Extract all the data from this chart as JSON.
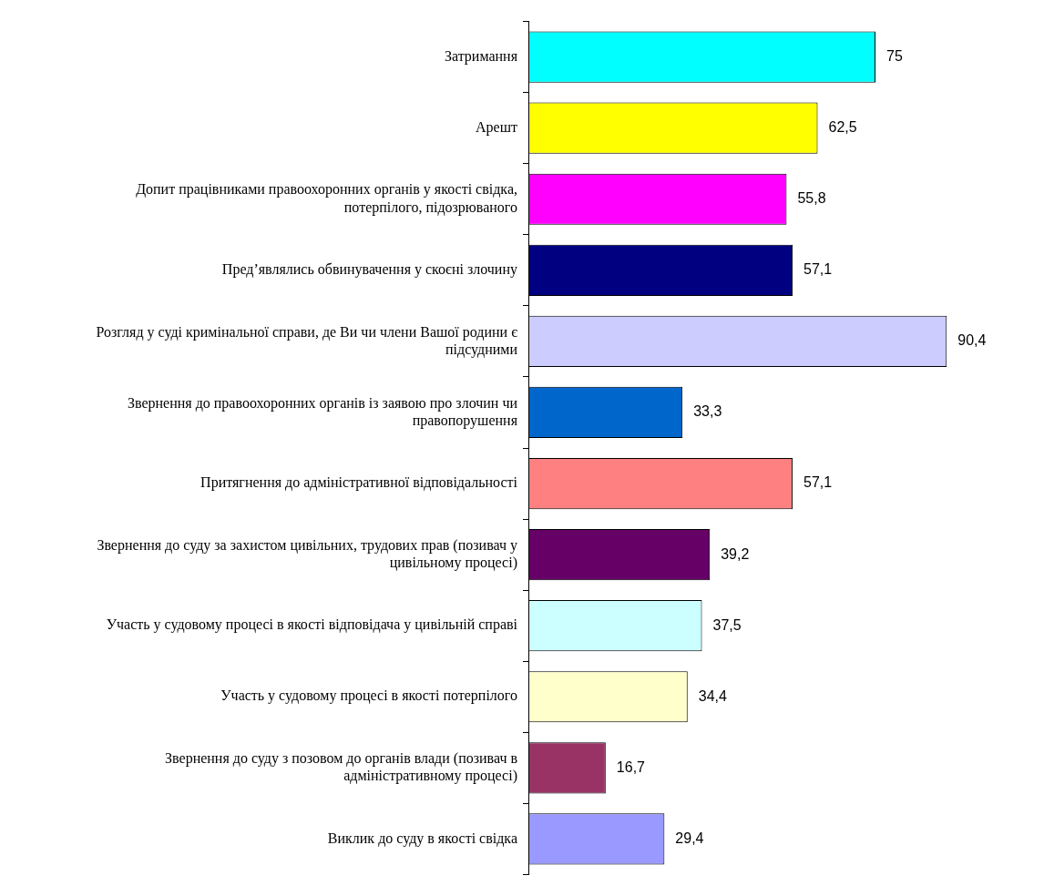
{
  "chart_data": {
    "type": "bar",
    "orientation": "horizontal",
    "legend": false,
    "categories": [
      "Затримання",
      "Арешт",
      "Допит працівниками правоохоронних органів у якості свідка, потерпілого, підозрюваного",
      "Пред’являлись обвинувачення у скоєні злочину",
      "Розгляд у суді кримінальної справи, де Ви чи члени Вашої родини є підсудними",
      "Звернення до правоохоронних органів із заявою про злочин чи правопорушення",
      "Притягнення до адміністративної відповідальності",
      "Звернення до суду за захистом цивільних, трудових прав (позивач у цивільному процесі)",
      "Участь у судовому процесі в якості відповідача у цивільній справі",
      "Участь у судовому процесі в якості потерпілого",
      "Звернення до суду з позовом до органів влади (позивач в адміністративному процесі)",
      "Виклик до суду в якості свідка"
    ],
    "values": [
      75,
      62.5,
      55.8,
      57.1,
      90.4,
      33.3,
      57.1,
      39.2,
      37.5,
      34.4,
      16.7,
      29.4
    ],
    "value_labels": [
      "75",
      "62,5",
      "55,8",
      "57,1",
      "90,4",
      "33,3",
      "57,1",
      "39,2",
      "37,5",
      "34,4",
      "16,7",
      "29,4"
    ],
    "colors": [
      "#00ffff",
      "#ffff00",
      "#ff00ff",
      "#000080",
      "#ccccff",
      "#0066cc",
      "#ff8080",
      "#660066",
      "#ccffff",
      "#ffffcc",
      "#993366",
      "#9999ff"
    ]
  }
}
